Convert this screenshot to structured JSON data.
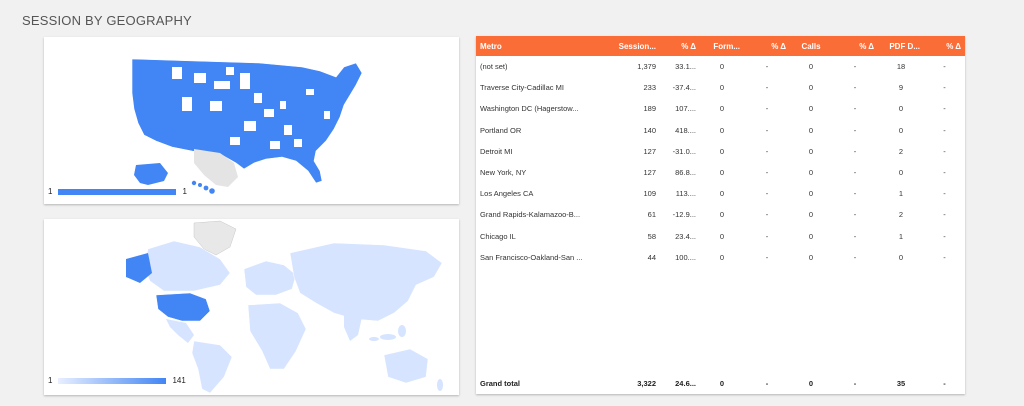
{
  "section_title": "SESSION BY GEOGRAPHY",
  "colors": {
    "accent": "#fb6d37",
    "map_fill": "#4285f4",
    "map_light": "#d6e4ff",
    "map_empty": "#e8e8e8"
  },
  "us_map": {
    "legend_min": "1",
    "legend_max": "1"
  },
  "world_map": {
    "legend_min": "1",
    "legend_max": "141"
  },
  "table": {
    "columns": [
      "Metro",
      "Session...",
      "% Δ",
      "Form...",
      "% Δ",
      "Calls",
      "% Δ",
      "PDF D...",
      "% Δ"
    ],
    "rows": [
      [
        "(not set)",
        "1,379",
        "33.1...",
        "0",
        "-",
        "0",
        "-",
        "18",
        "-"
      ],
      [
        "Traverse City-Cadillac MI",
        "233",
        "-37.4...",
        "0",
        "-",
        "0",
        "-",
        "9",
        "-"
      ],
      [
        "Washington DC (Hagerstow...",
        "189",
        "107....",
        "0",
        "-",
        "0",
        "-",
        "0",
        "-"
      ],
      [
        "Portland OR",
        "140",
        "418....",
        "0",
        "-",
        "0",
        "-",
        "0",
        "-"
      ],
      [
        "Detroit MI",
        "127",
        "-31.0...",
        "0",
        "-",
        "0",
        "-",
        "2",
        "-"
      ],
      [
        "New York, NY",
        "127",
        "86.8...",
        "0",
        "-",
        "0",
        "-",
        "0",
        "-"
      ],
      [
        "Los Angeles CA",
        "109",
        "113....",
        "0",
        "-",
        "0",
        "-",
        "1",
        "-"
      ],
      [
        "Grand Rapids-Kalamazoo-B...",
        "61",
        "-12.9...",
        "0",
        "-",
        "0",
        "-",
        "2",
        "-"
      ],
      [
        "Chicago IL",
        "58",
        "23.4...",
        "0",
        "-",
        "0",
        "-",
        "1",
        "-"
      ],
      [
        "San Francisco-Oakland-San ...",
        "44",
        "100....",
        "0",
        "-",
        "0",
        "-",
        "0",
        "-"
      ]
    ],
    "grand_total": [
      "Grand total",
      "3,322",
      "24.6...",
      "0",
      "-",
      "0",
      "-",
      "35",
      "-"
    ]
  }
}
